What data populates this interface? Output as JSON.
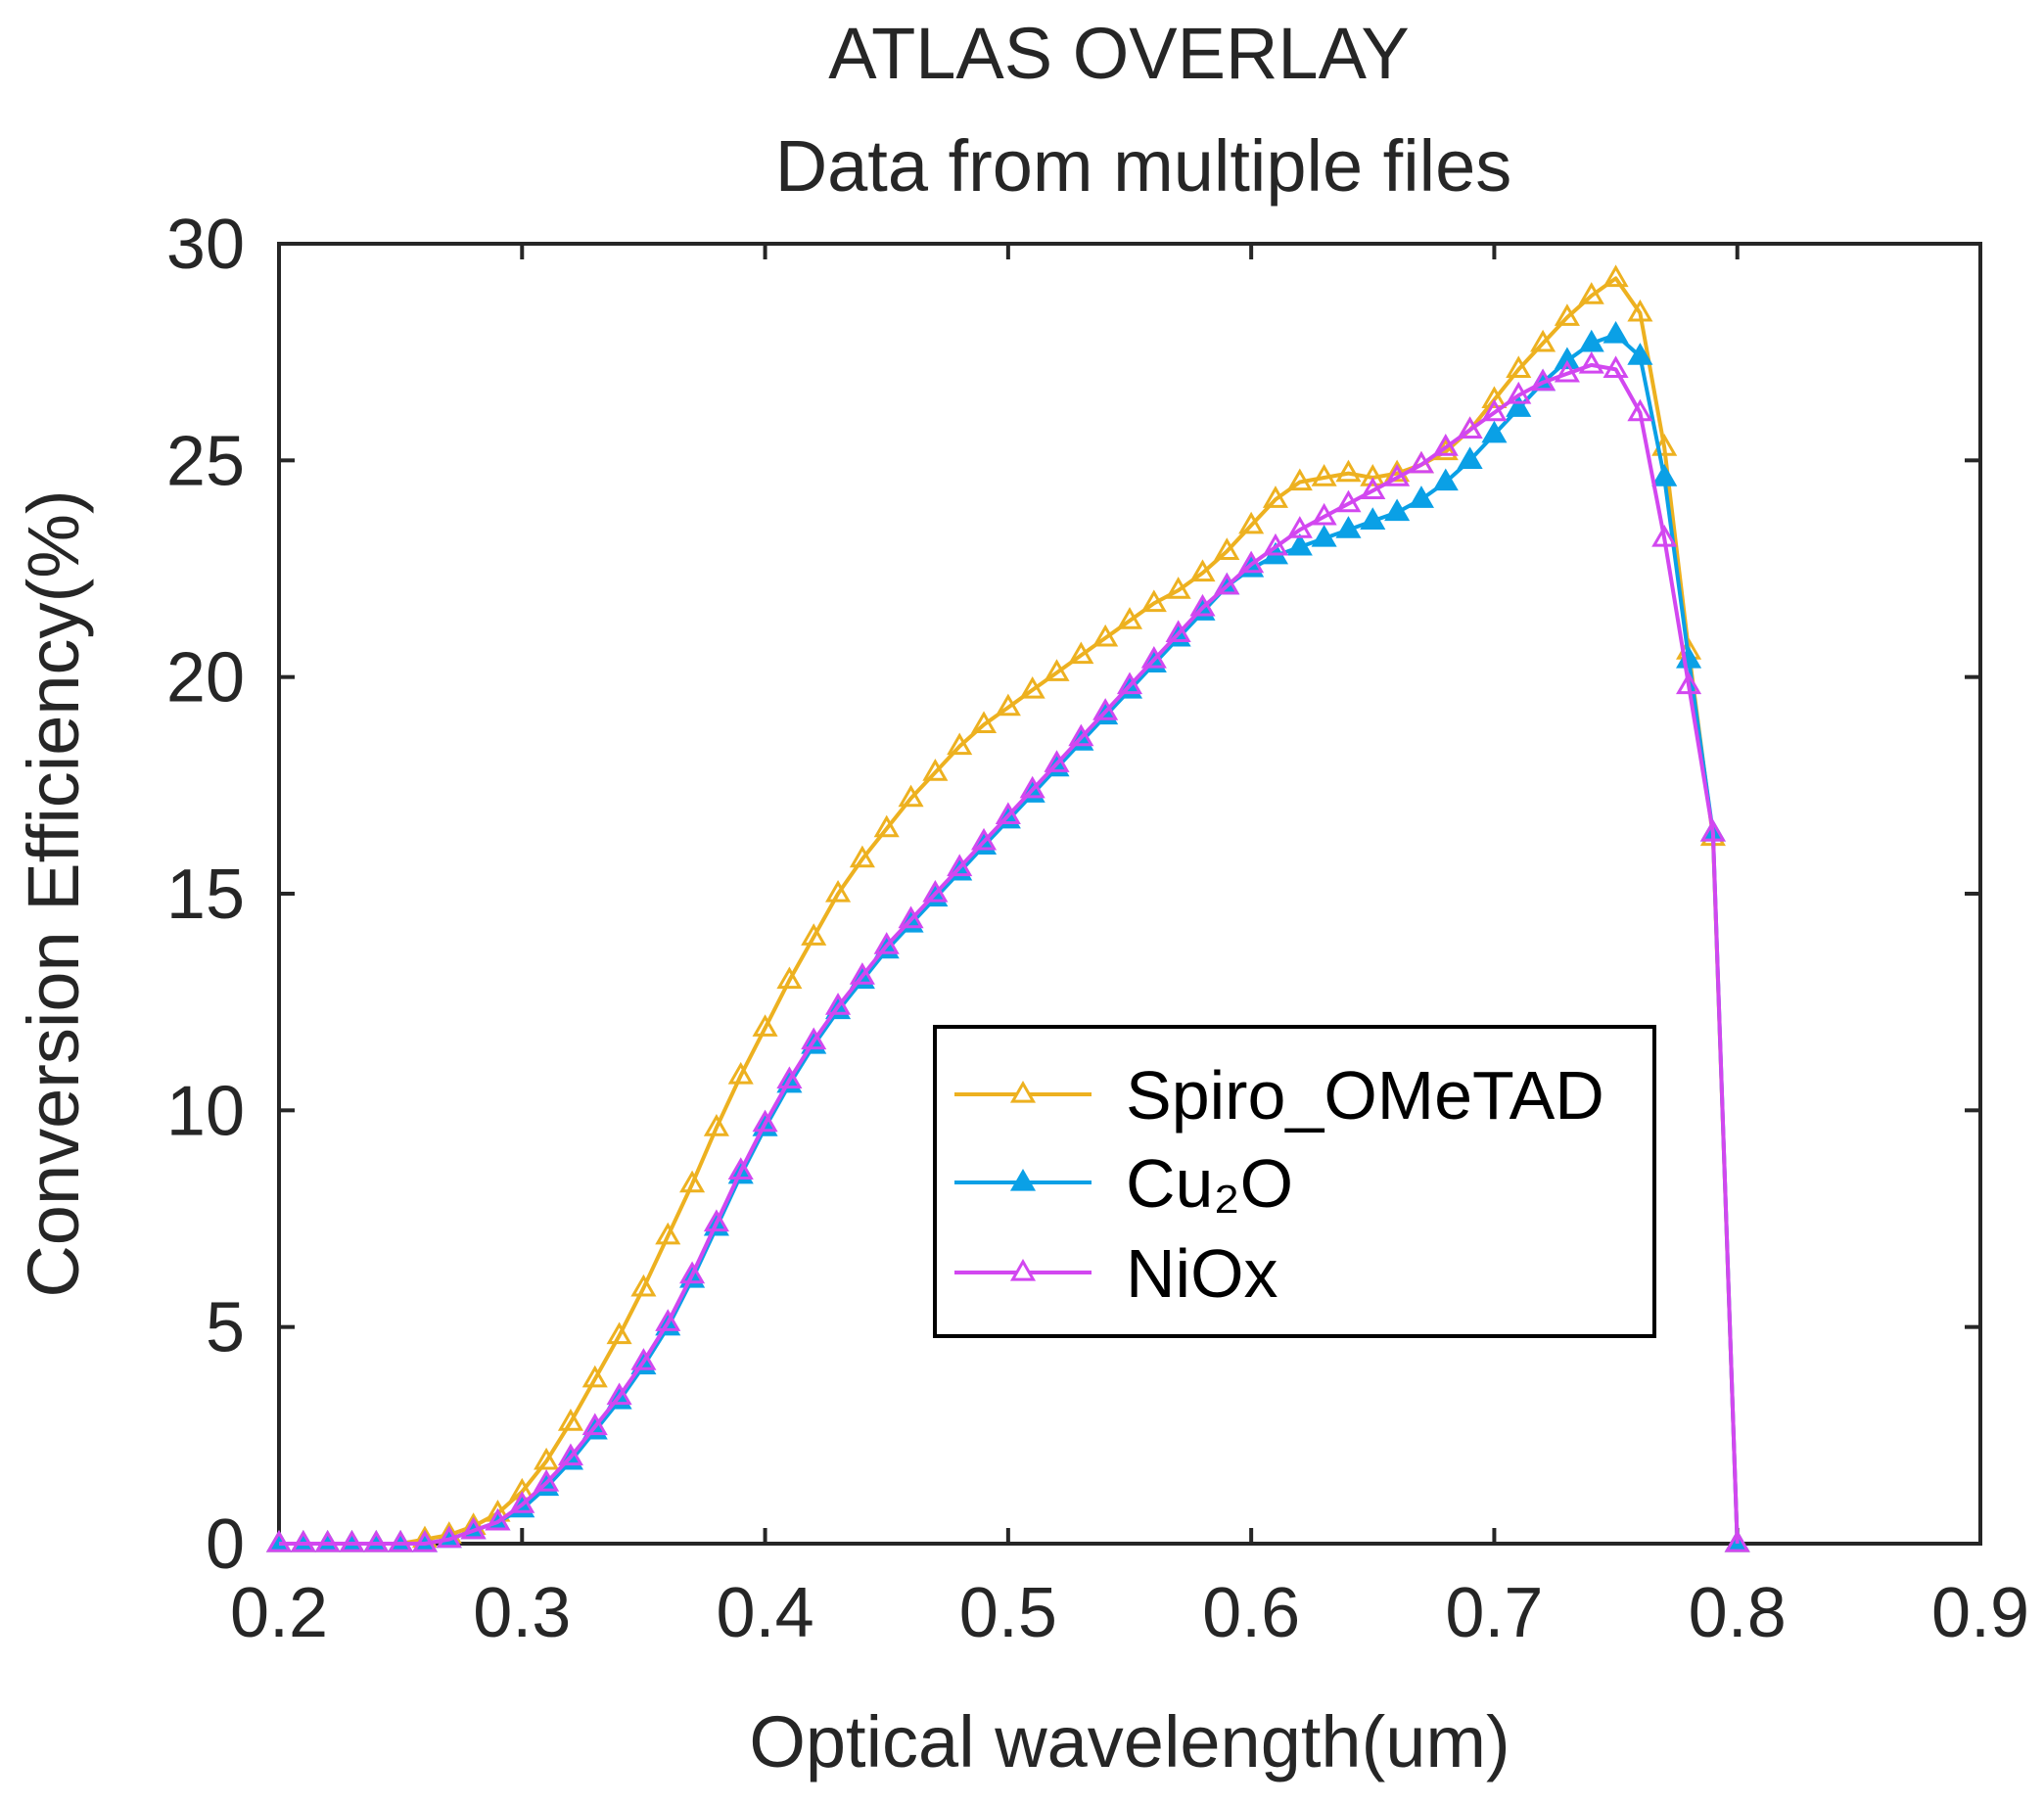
{
  "chart_data": {
    "type": "line",
    "title": "ATLAS OVERLAY",
    "subtitle": "Data from multiple files",
    "xlabel": "Optical wavelength(um)",
    "ylabel": "Conversion Efficiency(%)",
    "xlim": [
      0.2,
      0.9
    ],
    "ylim": [
      0,
      30
    ],
    "xticks": [
      "0.2",
      "0.3",
      "0.4",
      "0.5",
      "0.6",
      "0.7",
      "0.8",
      "0.9"
    ],
    "yticks": [
      "0",
      "5",
      "10",
      "15",
      "20",
      "25",
      "30"
    ],
    "grid": false,
    "legend_position": "center-right",
    "x": [
      0.2,
      0.21,
      0.22,
      0.23,
      0.24,
      0.25,
      0.26,
      0.27,
      0.28,
      0.29,
      0.3,
      0.31,
      0.32,
      0.33,
      0.34,
      0.35,
      0.36,
      0.37,
      0.38,
      0.39,
      0.4,
      0.41,
      0.42,
      0.43,
      0.44,
      0.45,
      0.46,
      0.47,
      0.48,
      0.49,
      0.5,
      0.51,
      0.52,
      0.53,
      0.54,
      0.55,
      0.56,
      0.57,
      0.58,
      0.59,
      0.6,
      0.61,
      0.62,
      0.63,
      0.64,
      0.65,
      0.66,
      0.67,
      0.68,
      0.69,
      0.7,
      0.71,
      0.72,
      0.73,
      0.74,
      0.75,
      0.76,
      0.77,
      0.78,
      0.79,
      0.8
    ],
    "series": [
      {
        "name": "Spiro_OMeTAD",
        "color": "#EDB120",
        "marker": "triangle-open",
        "values": [
          0,
          0,
          0,
          0,
          0,
          0,
          0.1,
          0.2,
          0.4,
          0.7,
          1.2,
          1.9,
          2.8,
          3.8,
          4.8,
          5.9,
          7.1,
          8.3,
          9.6,
          10.8,
          11.9,
          13.0,
          14.0,
          15.0,
          15.8,
          16.5,
          17.2,
          17.8,
          18.4,
          18.9,
          19.3,
          19.7,
          20.1,
          20.5,
          20.9,
          21.3,
          21.7,
          22.0,
          22.4,
          22.9,
          23.5,
          24.1,
          24.5,
          24.6,
          24.7,
          24.6,
          24.7,
          24.9,
          25.2,
          25.7,
          26.4,
          27.1,
          27.7,
          28.3,
          28.8,
          29.2,
          28.4,
          25.3,
          20.6,
          16.3,
          0
        ]
      },
      {
        "name": "Cu₂O",
        "color": "#0AA0E6",
        "marker": "triangle-filled",
        "values": [
          0,
          0,
          0,
          0,
          0,
          0,
          0,
          0.1,
          0.3,
          0.5,
          0.8,
          1.3,
          1.9,
          2.6,
          3.3,
          4.1,
          5.0,
          6.1,
          7.3,
          8.5,
          9.6,
          10.6,
          11.5,
          12.3,
          13.0,
          13.7,
          14.3,
          14.9,
          15.5,
          16.1,
          16.7,
          17.3,
          17.9,
          18.5,
          19.1,
          19.7,
          20.3,
          20.9,
          21.5,
          22.1,
          22.5,
          22.8,
          23.0,
          23.2,
          23.4,
          23.6,
          23.8,
          24.1,
          24.5,
          25.0,
          25.6,
          26.2,
          26.8,
          27.3,
          27.7,
          27.9,
          27.4,
          24.6,
          20.4,
          16.4,
          0
        ]
      },
      {
        "name": "NiOx",
        "color": "#D247F0",
        "marker": "triangle-open",
        "values": [
          0,
          0,
          0,
          0,
          0,
          0,
          0,
          0.1,
          0.3,
          0.5,
          0.9,
          1.4,
          2.0,
          2.7,
          3.4,
          4.2,
          5.1,
          6.2,
          7.4,
          8.6,
          9.7,
          10.7,
          11.6,
          12.4,
          13.1,
          13.8,
          14.4,
          15.0,
          15.6,
          16.2,
          16.8,
          17.4,
          18.0,
          18.6,
          19.2,
          19.8,
          20.4,
          21.0,
          21.6,
          22.1,
          22.6,
          23.0,
          23.4,
          23.7,
          24.0,
          24.3,
          24.6,
          24.9,
          25.3,
          25.7,
          26.1,
          26.5,
          26.8,
          27.0,
          27.2,
          27.1,
          26.1,
          23.2,
          19.8,
          16.4,
          0
        ]
      }
    ]
  }
}
